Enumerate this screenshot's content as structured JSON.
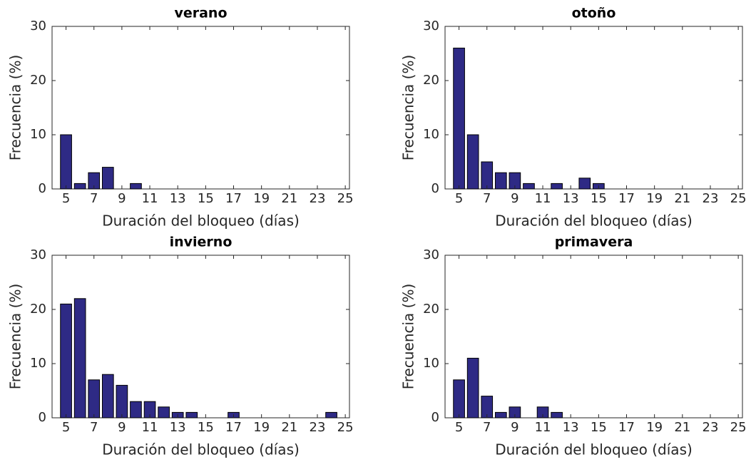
{
  "chart_data": [
    {
      "type": "bar",
      "title": "verano",
      "xlabel": "Duración del bloqueo (días)",
      "ylabel": "Frecuencia (%)",
      "color": "#2e2a85",
      "x": [
        5,
        6,
        7,
        8,
        10
      ],
      "values": [
        10,
        1,
        3,
        4,
        1
      ],
      "xlim": [
        4,
        25.3
      ],
      "ylim": [
        0,
        30
      ],
      "xticks": [
        5,
        7,
        9,
        11,
        13,
        15,
        17,
        19,
        21,
        23,
        25
      ],
      "yticks": [
        0,
        10,
        20,
        30
      ]
    },
    {
      "type": "bar",
      "title": "otoño",
      "xlabel": "Duración del bloqueo (días)",
      "ylabel": "Frecuencia (%)",
      "color": "#2e2a85",
      "x": [
        5,
        6,
        7,
        8,
        9,
        10,
        12,
        14,
        15
      ],
      "values": [
        26,
        10,
        5,
        3,
        3,
        1,
        1,
        2,
        1
      ],
      "xlim": [
        4,
        25.3
      ],
      "ylim": [
        0,
        30
      ],
      "xticks": [
        5,
        7,
        9,
        11,
        13,
        15,
        17,
        19,
        21,
        23,
        25
      ],
      "yticks": [
        0,
        10,
        20,
        30
      ]
    },
    {
      "type": "bar",
      "title": "invierno",
      "xlabel": "Duración del bloqueo (días)",
      "ylabel": "Frecuencia (%)",
      "color": "#2e2a85",
      "x": [
        5,
        6,
        7,
        8,
        9,
        10,
        11,
        12,
        13,
        14,
        17,
        24
      ],
      "values": [
        21,
        22,
        7,
        8,
        6,
        3,
        3,
        2,
        1,
        1,
        1,
        1
      ],
      "xlim": [
        4,
        25.3
      ],
      "ylim": [
        0,
        30
      ],
      "xticks": [
        5,
        7,
        9,
        11,
        13,
        15,
        17,
        19,
        21,
        23,
        25
      ],
      "yticks": [
        0,
        10,
        20,
        30
      ]
    },
    {
      "type": "bar",
      "title": "primavera",
      "xlabel": "Duración del bloqueo (días)",
      "ylabel": "Frecuencia (%)",
      "color": "#2e2a85",
      "x": [
        5,
        6,
        7,
        8,
        9,
        11,
        12
      ],
      "values": [
        7,
        11,
        4,
        1,
        2,
        2,
        1
      ],
      "xlim": [
        4,
        25.3
      ],
      "ylim": [
        0,
        30
      ],
      "xticks": [
        5,
        7,
        9,
        11,
        13,
        15,
        17,
        19,
        21,
        23,
        25
      ],
      "yticks": [
        0,
        10,
        20,
        30
      ]
    }
  ]
}
